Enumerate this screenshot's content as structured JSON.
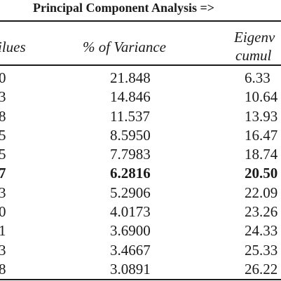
{
  "caption": "Principal Component Analysis =>",
  "columns": {
    "eigenvalues_partial": "ilues",
    "percent_variance": "% of Variance",
    "eigen_cumul_line1": "Eigenv",
    "eigen_cumul_line2": "cumul"
  },
  "rows": [
    {
      "a": "0",
      "b": "21.848",
      "c": "6.33",
      "bold": false
    },
    {
      "a": "3",
      "b": "14.846",
      "c": "10.64",
      "bold": false
    },
    {
      "a": "8",
      "b": "11.537",
      "c": "13.93",
      "bold": false
    },
    {
      "a": "5",
      "b": "8.5950",
      "c": "16.47",
      "bold": false
    },
    {
      "a": "5",
      "b": "7.7983",
      "c": "18.74",
      "bold": false
    },
    {
      "a": "7",
      "b": "6.2816",
      "c": "20.50",
      "bold": true
    },
    {
      "a": "3",
      "b": "5.2906",
      "c": "22.09",
      "bold": false
    },
    {
      "a": "0",
      "b": "4.0173",
      "c": "23.26",
      "bold": false
    },
    {
      "a": "1",
      "b": "3.6900",
      "c": "24.33",
      "bold": false
    },
    {
      "a": "3",
      "b": "3.4667",
      "c": "25.33",
      "bold": false
    },
    {
      "a": "8",
      "b": "3.0891",
      "c": "26.22",
      "bold": false
    }
  ]
}
